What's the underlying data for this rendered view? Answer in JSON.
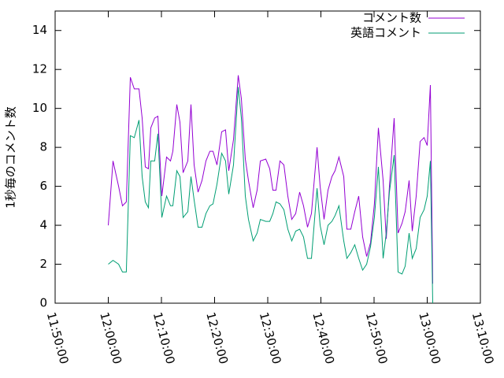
{
  "chart_data": {
    "type": "line",
    "ylabel": "1秒毎のコメント数",
    "x": [
      "12:00:00",
      "12:00:53",
      "12:01:56",
      "12:02:40",
      "12:03:24",
      "12:04:09",
      "12:04:53",
      "12:05:47",
      "12:06:22",
      "12:06:58",
      "12:07:33",
      "12:08:00",
      "12:08:44",
      "12:09:20",
      "12:10:04",
      "12:10:58",
      "12:11:42",
      "12:12:09",
      "12:12:53",
      "12:13:29",
      "12:14:04",
      "12:14:58",
      "12:15:33",
      "12:16:09",
      "12:16:53",
      "12:17:38",
      "12:18:22",
      "12:19:07",
      "12:19:42",
      "12:20:27",
      "12:21:20",
      "12:22:04",
      "12:22:40",
      "12:23:33",
      "12:24:27",
      "12:25:02",
      "12:25:47",
      "12:26:22",
      "12:27:16",
      "12:28:00",
      "12:28:36",
      "12:29:38",
      "12:30:22",
      "12:30:58",
      "12:31:33",
      "12:32:18",
      "12:33:02",
      "12:33:47",
      "12:34:31",
      "12:35:16",
      "12:36:00",
      "12:36:44",
      "12:37:29",
      "12:38:13",
      "12:39:16",
      "12:39:51",
      "12:40:36",
      "12:41:20",
      "12:42:04",
      "12:42:40",
      "12:43:24",
      "12:44:18",
      "12:44:53",
      "12:45:38",
      "12:46:22",
      "12:47:07",
      "12:47:51",
      "12:48:36",
      "12:49:20",
      "12:50:04",
      "12:50:49",
      "12:51:42",
      "12:52:18",
      "12:52:53",
      "12:53:47",
      "12:54:31",
      "12:55:16",
      "12:55:51",
      "12:56:36",
      "12:57:11",
      "12:57:56",
      "12:58:40",
      "12:59:24",
      "13:00:00",
      "13:00:36",
      "13:01:02"
    ],
    "series": [
      {
        "name": "コメント数",
        "color": "#9400d3",
        "values": [
          4.0,
          7.3,
          6.0,
          5.0,
          5.2,
          11.6,
          11.0,
          11.0,
          9.5,
          7.0,
          6.9,
          9.0,
          9.5,
          9.6,
          5.5,
          7.5,
          7.3,
          7.8,
          10.2,
          9.3,
          6.7,
          7.3,
          10.2,
          7.1,
          5.7,
          6.3,
          7.3,
          7.8,
          7.8,
          7.1,
          8.8,
          8.9,
          6.8,
          8.4,
          11.7,
          10.5,
          7.4,
          6.3,
          4.9,
          5.8,
          7.3,
          7.4,
          6.9,
          5.8,
          5.8,
          7.3,
          7.1,
          5.5,
          4.3,
          4.6,
          5.7,
          5.0,
          3.9,
          4.6,
          8.0,
          6.0,
          4.3,
          5.8,
          6.5,
          6.8,
          7.5,
          6.5,
          3.8,
          3.8,
          4.7,
          5.5,
          3.4,
          2.4,
          3.1,
          5.1,
          9.0,
          6.3,
          3.3,
          6.0,
          9.5,
          3.6,
          4.1,
          4.7,
          6.3,
          3.7,
          5.5,
          8.3,
          8.5,
          8.1,
          11.2,
          1.0
        ]
      },
      {
        "name": "英語コメント",
        "color": "#009e73",
        "values": [
          2.0,
          2.2,
          2.0,
          1.6,
          1.6,
          8.6,
          8.5,
          9.4,
          6.5,
          5.2,
          4.9,
          7.3,
          7.3,
          8.7,
          4.4,
          5.5,
          5.0,
          5.0,
          6.8,
          6.5,
          4.4,
          4.7,
          6.5,
          5.3,
          3.9,
          3.9,
          4.6,
          5.0,
          5.1,
          6.1,
          7.7,
          7.3,
          5.6,
          7.1,
          11.1,
          9.5,
          5.5,
          4.3,
          3.2,
          3.6,
          4.3,
          4.2,
          4.2,
          4.6,
          5.2,
          5.1,
          4.8,
          3.8,
          3.2,
          3.7,
          3.8,
          3.4,
          2.3,
          2.3,
          5.9,
          4.0,
          3.0,
          4.0,
          4.2,
          4.5,
          5.0,
          3.2,
          2.3,
          2.6,
          3.0,
          2.3,
          1.7,
          2.0,
          2.9,
          4.4,
          7.0,
          2.3,
          3.6,
          5.7,
          7.6,
          1.6,
          1.5,
          1.9,
          3.6,
          2.3,
          2.8,
          4.4,
          4.8,
          5.5,
          7.3,
          0
        ]
      }
    ],
    "xlim": [
      "11:50:00",
      "13:10:00"
    ],
    "xticks": [
      "11:50:00",
      "12:00:00",
      "12:10:00",
      "12:20:00",
      "12:30:00",
      "12:40:00",
      "12:50:00",
      "13:00:00",
      "13:10:00"
    ],
    "ylim": [
      0,
      15
    ],
    "yticks": [
      0,
      2,
      4,
      6,
      8,
      10,
      12,
      14
    ],
    "legend": "top-right"
  }
}
